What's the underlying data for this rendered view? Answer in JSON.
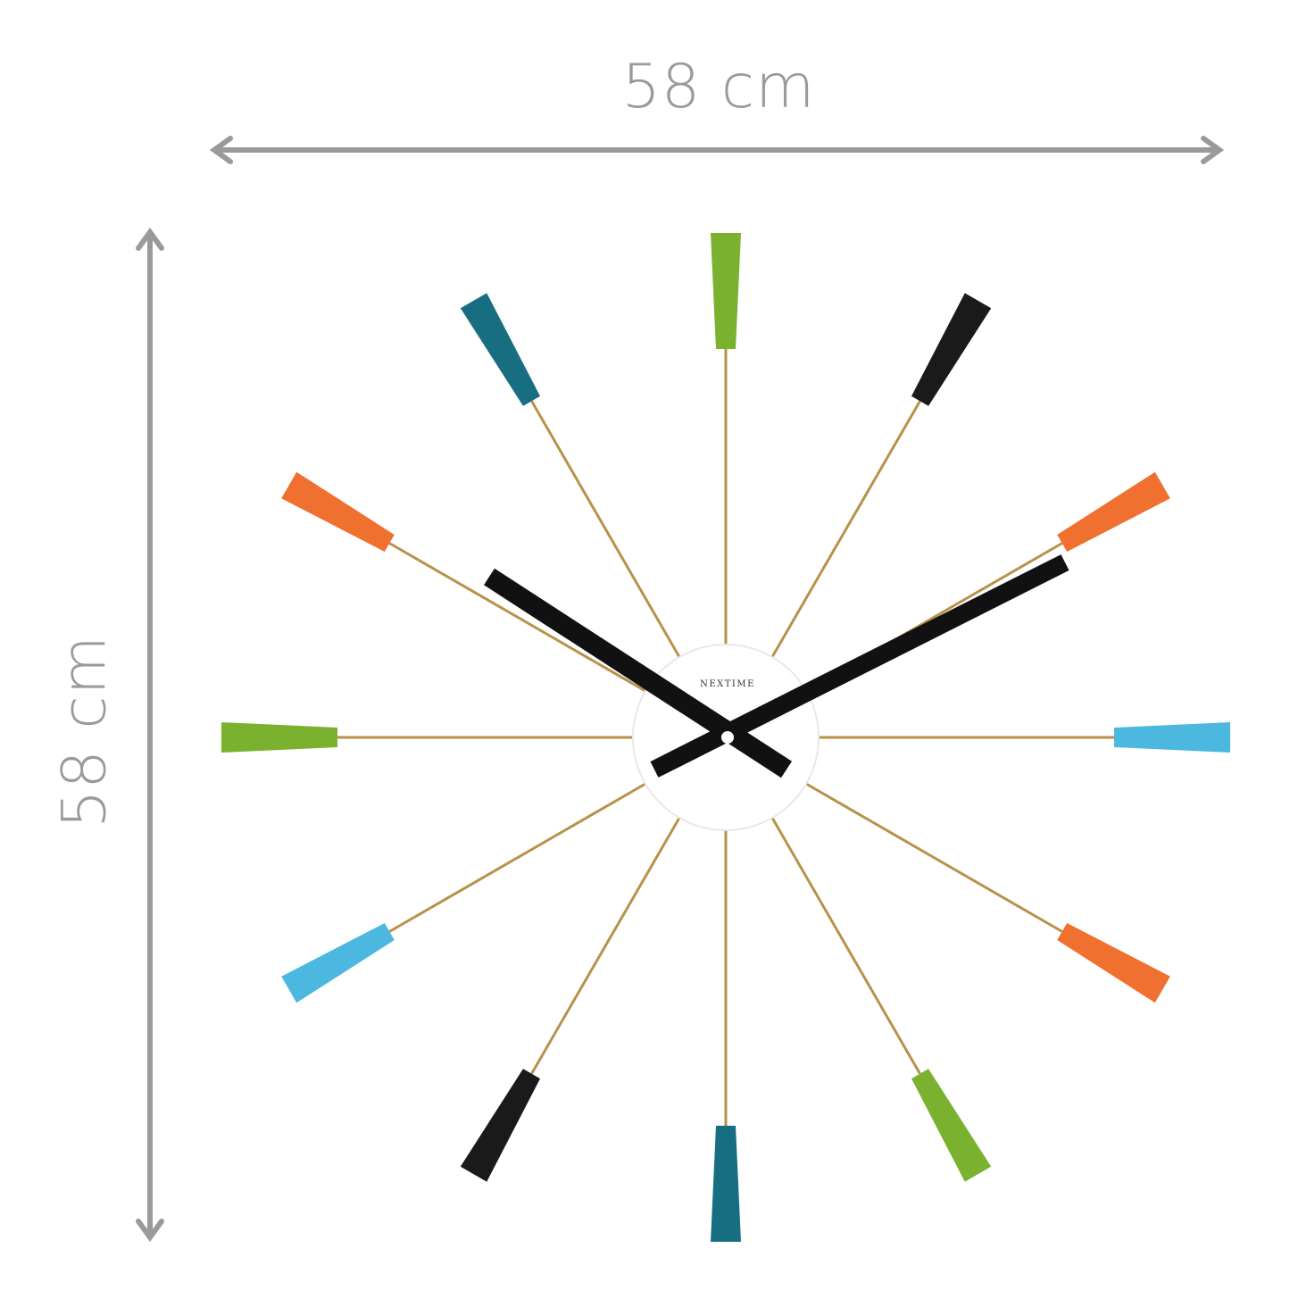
{
  "dimensions": {
    "width_label": "58 cm",
    "height_label": "58 cm",
    "arrow_color": "#9a9a9a"
  },
  "clock": {
    "brand": "NeXtime",
    "spoke_color": "#b8924a",
    "hand_color": "#111111",
    "face_color": "#ffffff",
    "tip_colors": [
      "#7ab230",
      "#1a1a1a",
      "#f07030",
      "#4cb8e0",
      "#f07030",
      "#7ab230",
      "#176e80",
      "#1a1a1a",
      "#4cb8e0",
      "#7ab230",
      "#f07030",
      "#176e80"
    ]
  }
}
